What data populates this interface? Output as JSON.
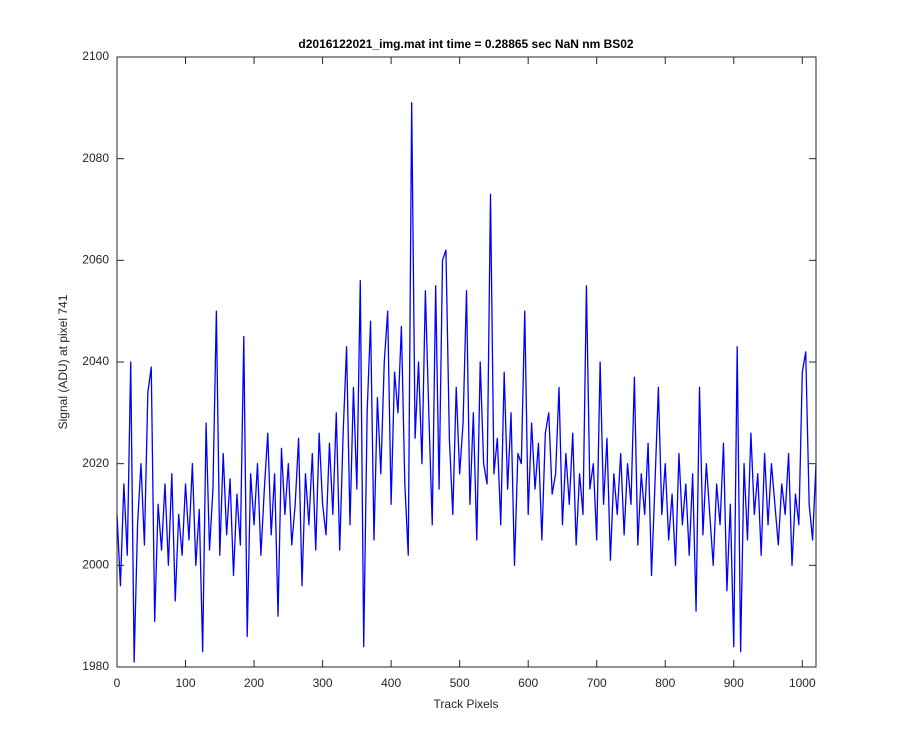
{
  "chart_data": {
    "type": "line",
    "title": "d2016122021_img.mat int time = 0.28865 sec  NaN nm BS02",
    "x_label": "Track Pixels",
    "y_label": "Signal (ADU) at pixel 741",
    "xlim": [
      0,
      1020
    ],
    "ylim": [
      1980,
      2100
    ],
    "xticks": [
      0,
      100,
      200,
      300,
      400,
      500,
      600,
      700,
      800,
      900,
      1000
    ],
    "yticks": [
      1980,
      2000,
      2020,
      2040,
      2060,
      2080,
      2100
    ],
    "grid": false,
    "x": [
      0,
      5,
      10,
      15,
      20,
      25,
      30,
      35,
      40,
      45,
      50,
      55,
      60,
      65,
      70,
      75,
      80,
      85,
      90,
      95,
      100,
      105,
      110,
      115,
      120,
      125,
      130,
      135,
      140,
      145,
      150,
      155,
      160,
      165,
      170,
      175,
      180,
      185,
      190,
      195,
      200,
      205,
      210,
      215,
      220,
      225,
      230,
      235,
      240,
      245,
      250,
      255,
      260,
      265,
      270,
      275,
      280,
      285,
      290,
      295,
      300,
      305,
      310,
      315,
      320,
      325,
      330,
      335,
      340,
      345,
      350,
      355,
      360,
      365,
      370,
      375,
      380,
      385,
      390,
      395,
      400,
      405,
      410,
      415,
      420,
      425,
      430,
      435,
      440,
      445,
      450,
      455,
      460,
      465,
      470,
      475,
      480,
      485,
      490,
      495,
      500,
      505,
      510,
      515,
      520,
      525,
      530,
      535,
      540,
      545,
      550,
      555,
      560,
      565,
      570,
      575,
      580,
      585,
      590,
      595,
      600,
      605,
      610,
      615,
      620,
      625,
      630,
      635,
      640,
      645,
      650,
      655,
      660,
      665,
      670,
      675,
      680,
      685,
      690,
      695,
      700,
      705,
      710,
      715,
      720,
      725,
      730,
      735,
      740,
      745,
      750,
      755,
      760,
      765,
      770,
      775,
      780,
      785,
      790,
      795,
      800,
      805,
      810,
      815,
      820,
      825,
      830,
      835,
      840,
      845,
      850,
      855,
      860,
      865,
      870,
      875,
      880,
      885,
      890,
      895,
      900,
      905,
      910,
      915,
      920,
      925,
      930,
      935,
      940,
      945,
      950,
      955,
      960,
      965,
      970,
      975,
      980,
      985,
      990,
      995,
      1000,
      1005,
      1010,
      1015,
      1020
    ],
    "series": [
      {
        "name": "signal",
        "color": "#0000ff",
        "values": [
          2010,
          1996,
          2016,
          2002,
          2040,
          1981,
          2008,
          2020,
          2004,
          2034,
          2039,
          1989,
          2012,
          2003,
          2016,
          2000,
          2018,
          1993,
          2010,
          2002,
          2016,
          2005,
          2020,
          2000,
          2011,
          1983,
          2028,
          2003,
          2015,
          2050,
          2002,
          2022,
          2006,
          2017,
          1998,
          2014,
          2004,
          2045,
          1986,
          2018,
          2008,
          2020,
          2002,
          2015,
          2026,
          2006,
          2018,
          1990,
          2023,
          2010,
          2020,
          2004,
          2012,
          2025,
          1996,
          2018,
          2008,
          2022,
          2003,
          2026,
          2012,
          2006,
          2024,
          2010,
          2030,
          2003,
          2026,
          2043,
          2008,
          2035,
          2015,
          2056,
          1984,
          2030,
          2048,
          2005,
          2033,
          2018,
          2040,
          2050,
          2012,
          2038,
          2030,
          2047,
          2016,
          2002,
          2091,
          2025,
          2040,
          2020,
          2054,
          2030,
          2008,
          2055,
          2015,
          2060,
          2062,
          2025,
          2010,
          2035,
          2018,
          2028,
          2054,
          2012,
          2030,
          2005,
          2040,
          2020,
          2016,
          2073,
          2018,
          2025,
          2008,
          2038,
          2015,
          2030,
          2000,
          2022,
          2020,
          2050,
          2010,
          2028,
          2015,
          2024,
          2005,
          2026,
          2030,
          2014,
          2018,
          2035,
          2008,
          2022,
          2012,
          2026,
          2004,
          2018,
          2010,
          2055,
          2015,
          2020,
          2005,
          2040,
          2012,
          2025,
          2001,
          2018,
          2010,
          2022,
          2006,
          2020,
          2012,
          2037,
          2004,
          2018,
          2010,
          2024,
          1998,
          2016,
          2035,
          2010,
          2020,
          2005,
          2014,
          2000,
          2022,
          2008,
          2016,
          2002,
          2018,
          1991,
          2035,
          2006,
          2020,
          2010,
          2000,
          2016,
          2008,
          2024,
          1995,
          2012,
          1984,
          2043,
          1983,
          2020,
          2005,
          2026,
          2010,
          2018,
          2002,
          2022,
          2008,
          2020,
          2012,
          2004,
          2016,
          2010,
          2022,
          2000,
          2014,
          2008,
          2038,
          2042,
          2012,
          2005,
          2020
        ]
      }
    ]
  }
}
